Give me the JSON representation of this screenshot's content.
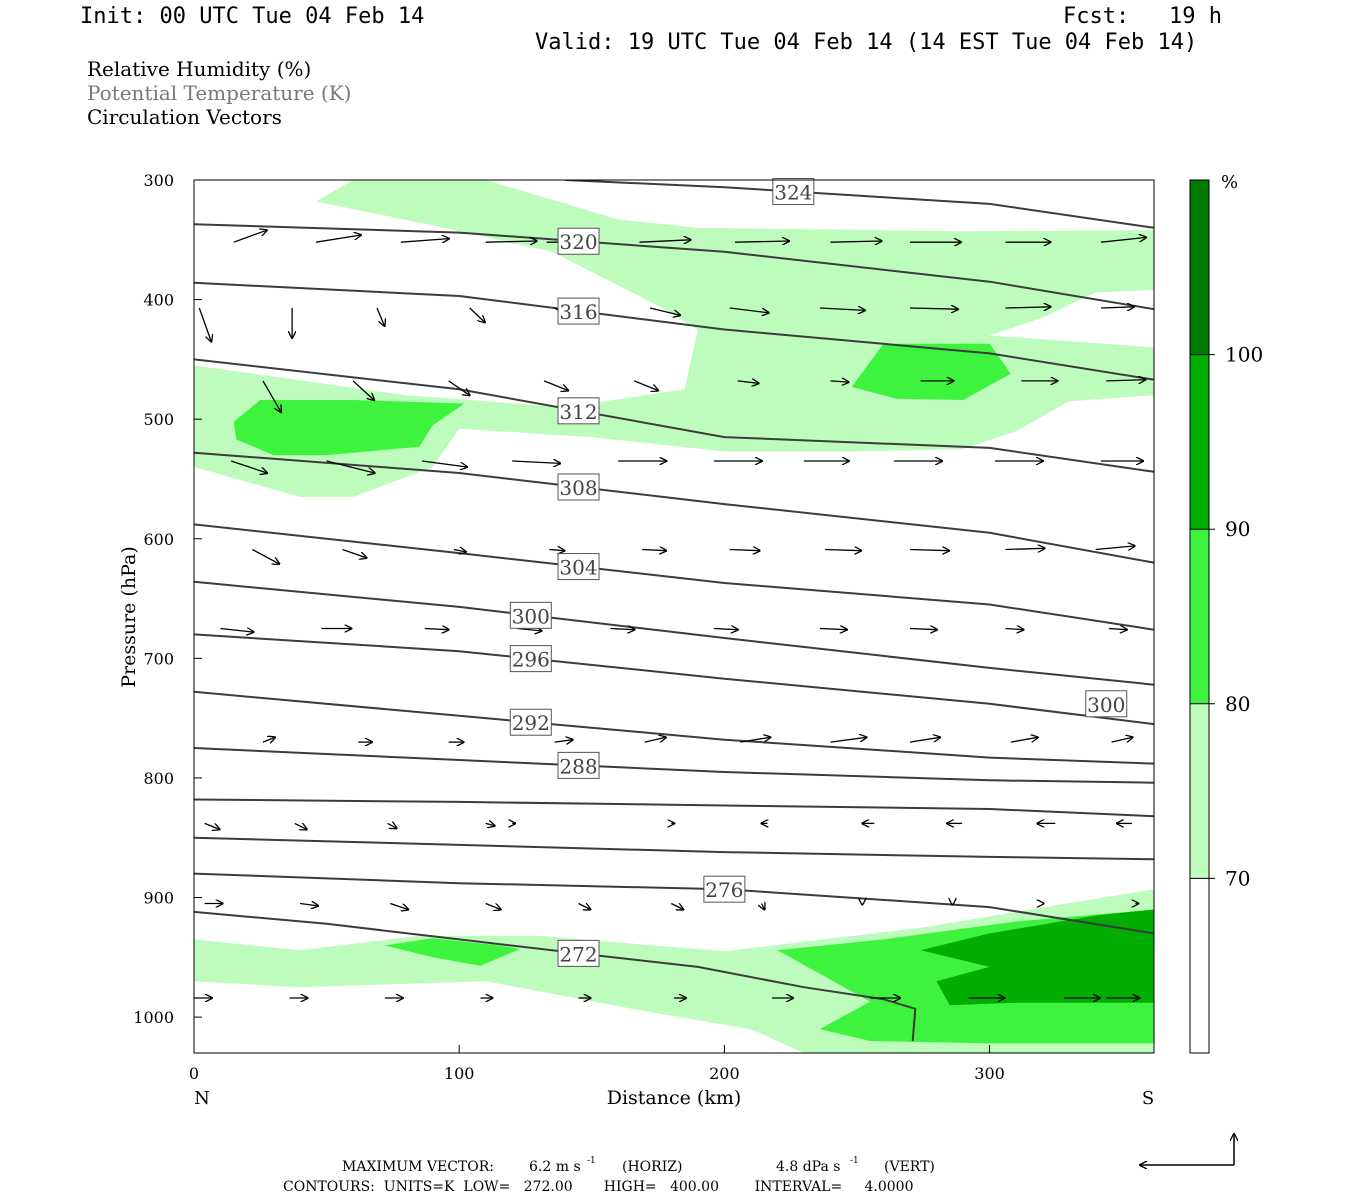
{
  "header": {
    "init": "Init: 00 UTC Tue 04 Feb 14",
    "fcst": "Fcst:   19 h",
    "valid": "Valid: 19 UTC Tue 04 Feb 14 (14 EST Tue 04 Feb 14)"
  },
  "legend": {
    "relative_humidity": "Relative Humidity (%)",
    "potential_temperature": "Potential Temperature (K)",
    "circulation_vectors": "Circulation Vectors"
  },
  "footer": {
    "max_vector_label": "MAXIMUM VECTOR:",
    "max_horiz": "6.2 m s",
    "horiz_unit": "(HORIZ)",
    "max_vert": "4.8 dPa s",
    "vert_unit": "(VERT)",
    "exponent": "-1",
    "contours": "CONTOURS:  UNITS=K  LOW=   272.00       HIGH=   400.00        INTERVAL=     4.0000"
  },
  "colors": {
    "rh_70": "#bdfcbd",
    "rh_80": "#3ef33e",
    "rh_90": "#00ad00",
    "rh_100": "#007a00",
    "theta_line": "#3c3c3c",
    "vector": "#000000"
  },
  "chart_data": {
    "type": "cross-section",
    "xlabel": "Distance (km)",
    "ylabel": "Pressure (hPa)",
    "xlim": [
      0,
      362
    ],
    "ylim": [
      1030,
      300
    ],
    "x_ticks": [
      0,
      100,
      200,
      300
    ],
    "x_tick_labels": [
      "0",
      "100",
      "200",
      "300"
    ],
    "y_ticks": [
      300,
      400,
      500,
      600,
      700,
      800,
      900,
      1000
    ],
    "y_tick_labels": [
      "300",
      "400",
      "500",
      "600",
      "700",
      "800",
      "900",
      "1000"
    ],
    "x_end_labels": {
      "left": "N",
      "right": "S"
    },
    "colorbar": {
      "unit": "%",
      "levels": [
        70,
        80,
        90,
        100
      ],
      "level_labels": [
        "70",
        "80",
        "90",
        "100"
      ],
      "colors": [
        "#ffffff",
        "#bdfcbd",
        "#3ef33e",
        "#00ad00",
        "#007a00"
      ]
    },
    "theta_contours": [
      {
        "value": 272,
        "label": "272",
        "points": [
          [
            0,
            912
          ],
          [
            50,
            922
          ],
          [
            100,
            935
          ],
          [
            150,
            948
          ],
          [
            190,
            958
          ],
          [
            230,
            975
          ],
          [
            260,
            985
          ],
          [
            272,
            993
          ],
          [
            271,
            1020
          ]
        ]
      },
      {
        "value": 276,
        "label": "276",
        "points": [
          [
            0,
            880
          ],
          [
            100,
            888
          ],
          [
            200,
            893
          ],
          [
            300,
            908
          ],
          [
            362,
            930
          ]
        ]
      },
      {
        "value": 280,
        "label": "",
        "points": [
          [
            0,
            850
          ],
          [
            100,
            856
          ],
          [
            200,
            862
          ],
          [
            300,
            866
          ],
          [
            362,
            868
          ]
        ]
      },
      {
        "value": 284,
        "label": "",
        "points": [
          [
            0,
            818
          ],
          [
            100,
            820
          ],
          [
            200,
            823
          ],
          [
            300,
            826
          ],
          [
            362,
            832
          ]
        ]
      },
      {
        "value": 288,
        "label": "288",
        "points": [
          [
            0,
            775
          ],
          [
            100,
            785
          ],
          [
            200,
            795
          ],
          [
            300,
            802
          ],
          [
            362,
            804
          ]
        ]
      },
      {
        "value": 292,
        "label": "292",
        "points": [
          [
            0,
            728
          ],
          [
            100,
            748
          ],
          [
            200,
            768
          ],
          [
            300,
            783
          ],
          [
            362,
            788
          ]
        ]
      },
      {
        "value": 296,
        "label": "296",
        "points": [
          [
            0,
            680
          ],
          [
            100,
            694
          ],
          [
            200,
            717
          ],
          [
            300,
            738
          ],
          [
            362,
            755
          ]
        ]
      },
      {
        "value": 300,
        "label": "300",
        "points": [
          [
            0,
            636
          ],
          [
            100,
            657
          ],
          [
            200,
            683
          ],
          [
            300,
            708
          ],
          [
            362,
            722
          ]
        ]
      },
      {
        "value": 304,
        "label": "304",
        "points": [
          [
            0,
            588
          ],
          [
            100,
            612
          ],
          [
            200,
            637
          ],
          [
            300,
            655
          ],
          [
            362,
            676
          ]
        ]
      },
      {
        "value": 308,
        "label": "308",
        "points": [
          [
            0,
            528
          ],
          [
            100,
            545
          ],
          [
            200,
            571
          ],
          [
            300,
            595
          ],
          [
            362,
            620
          ]
        ]
      },
      {
        "value": 312,
        "label": "312",
        "points": [
          [
            0,
            450
          ],
          [
            100,
            475
          ],
          [
            200,
            515
          ],
          [
            300,
            524
          ],
          [
            362,
            544
          ]
        ]
      },
      {
        "value": 316,
        "label": "316",
        "points": [
          [
            0,
            386
          ],
          [
            100,
            397
          ],
          [
            200,
            425
          ],
          [
            300,
            445
          ],
          [
            362,
            467
          ]
        ]
      },
      {
        "value": 320,
        "label": "320",
        "points": [
          [
            0,
            337
          ],
          [
            100,
            344
          ],
          [
            200,
            360
          ],
          [
            300,
            385
          ],
          [
            362,
            408
          ]
        ]
      },
      {
        "value": 324,
        "label": "324",
        "points": [
          [
            140,
            300
          ],
          [
            200,
            306
          ],
          [
            300,
            320
          ],
          [
            362,
            340
          ]
        ]
      }
    ],
    "extra_labels": [
      {
        "text": "300",
        "x": 344,
        "p": 738
      }
    ],
    "rh_regions": [
      {
        "level": 70,
        "points": [
          [
            46,
            318
          ],
          [
            60,
            300
          ],
          [
            110,
            300
          ],
          [
            160,
            333
          ],
          [
            190,
            340
          ],
          [
            290,
            343
          ],
          [
            362,
            342
          ],
          [
            362,
            392
          ],
          [
            340,
            394
          ],
          [
            320,
            415
          ],
          [
            300,
            430
          ],
          [
            362,
            440
          ],
          [
            362,
            480
          ],
          [
            330,
            485
          ],
          [
            310,
            510
          ],
          [
            290,
            525
          ],
          [
            250,
            527
          ],
          [
            200,
            527
          ],
          [
            150,
            515
          ],
          [
            100,
            508
          ],
          [
            90,
            540
          ],
          [
            60,
            565
          ],
          [
            40,
            565
          ],
          [
            0,
            540
          ],
          [
            0,
            455
          ],
          [
            80,
            480
          ],
          [
            140,
            490
          ],
          [
            185,
            475
          ],
          [
            190,
            425
          ],
          [
            175,
            405
          ],
          [
            135,
            360
          ],
          [
            90,
            338
          ]
        ]
      },
      {
        "level": 70,
        "points": [
          [
            0,
            935
          ],
          [
            40,
            944
          ],
          [
            85,
            932
          ],
          [
            130,
            932
          ],
          [
            200,
            945
          ],
          [
            275,
            925
          ],
          [
            362,
            893
          ],
          [
            362,
            1030
          ],
          [
            230,
            1030
          ],
          [
            210,
            1010
          ],
          [
            170,
            995
          ],
          [
            110,
            970
          ],
          [
            40,
            975
          ],
          [
            0,
            970
          ]
        ]
      },
      {
        "level": 80,
        "points": [
          [
            15,
            502
          ],
          [
            25,
            484
          ],
          [
            60,
            484
          ],
          [
            102,
            487
          ],
          [
            90,
            505
          ],
          [
            85,
            523
          ],
          [
            50,
            530
          ],
          [
            30,
            530
          ],
          [
            16,
            517
          ]
        ]
      },
      {
        "level": 80,
        "points": [
          [
            248,
            473
          ],
          [
            260,
            437
          ],
          [
            300,
            437
          ],
          [
            308,
            462
          ],
          [
            290,
            484
          ],
          [
            265,
            483
          ]
        ]
      },
      {
        "level": 80,
        "points": [
          [
            72,
            940
          ],
          [
            90,
            934
          ],
          [
            115,
            940
          ],
          [
            123,
            943
          ],
          [
            108,
            957
          ],
          [
            90,
            950
          ]
        ]
      },
      {
        "level": 80,
        "points": [
          [
            220,
            944
          ],
          [
            260,
            935
          ],
          [
            310,
            920
          ],
          [
            362,
            910
          ],
          [
            362,
            1022
          ],
          [
            300,
            1022
          ],
          [
            255,
            1020
          ],
          [
            236,
            1010
          ],
          [
            255,
            987
          ],
          [
            237,
            965
          ]
        ]
      },
      {
        "level": 90,
        "points": [
          [
            274,
            944
          ],
          [
            300,
            930
          ],
          [
            340,
            915
          ],
          [
            362,
            910
          ],
          [
            362,
            988
          ],
          [
            310,
            988
          ],
          [
            285,
            990
          ],
          [
            280,
            970
          ],
          [
            300,
            958
          ]
        ]
      }
    ],
    "vectors": [
      {
        "p": 352,
        "x": [
          15,
          46,
          78,
          110,
          133,
          168,
          204,
          240,
          270,
          306,
          342
        ],
        "dx": [
          22,
          30,
          32,
          34,
          30,
          34,
          36,
          34,
          34,
          30,
          30
        ],
        "dy": [
          10,
          6,
          3,
          1,
          0,
          2,
          1,
          1,
          0,
          0,
          4
        ]
      },
      {
        "p": 407,
        "x": [
          2,
          37,
          69,
          104,
          136,
          172,
          202,
          236,
          270,
          306,
          342
        ],
        "dx": [
          8,
          0,
          5,
          10,
          14,
          20,
          26,
          30,
          32,
          30,
          22
        ],
        "dy": [
          -28,
          -25,
          -15,
          -12,
          -10,
          -6,
          -4,
          -2,
          -1,
          1,
          1
        ]
      },
      {
        "p": 468,
        "x": [
          26,
          60,
          96,
          132,
          166,
          205,
          240,
          274,
          312,
          344
        ],
        "dx": [
          12,
          14,
          14,
          16,
          16,
          14,
          12,
          22,
          24,
          26
        ],
        "dy": [
          -26,
          -16,
          -12,
          -8,
          -8,
          -2,
          -1,
          0,
          0,
          1
        ]
      },
      {
        "p": 535,
        "x": [
          14,
          50,
          86,
          120,
          160,
          196,
          230,
          264,
          302,
          342
        ],
        "dx": [
          24,
          32,
          30,
          32,
          32,
          32,
          30,
          32,
          32,
          28
        ],
        "dy": [
          -10,
          -10,
          -5,
          -2,
          0,
          0,
          0,
          0,
          0,
          0
        ]
      },
      {
        "p": 609,
        "x": [
          22,
          56,
          98,
          134,
          169,
          202,
          238,
          270,
          306,
          340
        ],
        "dx": [
          18,
          16,
          8,
          10,
          16,
          20,
          24,
          26,
          26,
          26
        ],
        "dy": [
          -12,
          -7,
          -2,
          -1,
          -1,
          -1,
          -1,
          -1,
          1,
          3
        ]
      },
      {
        "p": 675,
        "x": [
          10,
          48,
          87,
          122,
          157,
          196,
          236,
          270,
          306,
          345
        ],
        "dx": [
          22,
          20,
          16,
          16,
          16,
          16,
          18,
          18,
          12,
          12
        ],
        "dy": [
          -3,
          0,
          -1,
          -2,
          -1,
          -1,
          -1,
          -1,
          -1,
          -1
        ]
      },
      {
        "p": 770,
        "x": [
          26,
          62,
          96,
          136,
          170,
          206,
          240,
          270,
          308,
          346
        ],
        "dx": [
          8,
          9,
          10,
          12,
          14,
          20,
          24,
          20,
          18,
          14
        ],
        "dy": [
          4,
          0,
          0,
          2,
          4,
          4,
          4,
          4,
          4,
          4
        ]
      },
      {
        "p": 838,
        "x": [
          4,
          38,
          73,
          110,
          120,
          180,
          214,
          252,
          284,
          318,
          348
        ],
        "dx": [
          10,
          8,
          6,
          6,
          2,
          2,
          -4,
          -8,
          -10,
          -12,
          -10
        ],
        "dy": [
          -5,
          -5,
          -4,
          -2,
          0,
          0,
          0,
          0,
          0,
          0,
          0
        ]
      },
      {
        "p": 905,
        "x": [
          4,
          40,
          74,
          110,
          145,
          180,
          214,
          252,
          286,
          320,
          355
        ],
        "dx": [
          12,
          12,
          12,
          10,
          8,
          8,
          2,
          0,
          0,
          0,
          2
        ],
        "dy": [
          0,
          -2,
          -5,
          -5,
          -5,
          -5,
          -5,
          -1,
          -1,
          0,
          0
        ]
      },
      {
        "p": 984,
        "x": [
          0,
          36,
          72,
          108,
          145,
          181,
          218,
          255,
          292,
          328,
          344
        ],
        "dx": [
          12,
          12,
          12,
          8,
          8,
          8,
          14,
          20,
          24,
          24,
          22
        ],
        "dy": [
          0,
          0,
          0,
          0,
          0,
          0,
          0,
          0,
          0,
          0,
          0
        ]
      }
    ]
  }
}
